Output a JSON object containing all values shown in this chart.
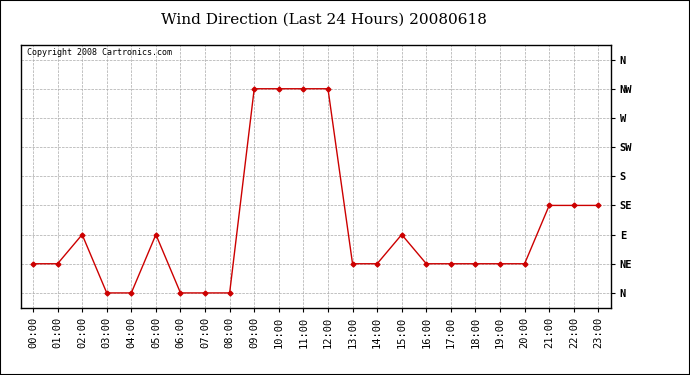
{
  "title": "Wind Direction (Last 24 Hours) 20080618",
  "copyright": "Copyright 2008 Cartronics.com",
  "x_labels": [
    "00:00",
    "01:00",
    "02:00",
    "03:00",
    "04:00",
    "05:00",
    "06:00",
    "07:00",
    "08:00",
    "09:00",
    "10:00",
    "11:00",
    "12:00",
    "13:00",
    "14:00",
    "15:00",
    "16:00",
    "17:00",
    "18:00",
    "19:00",
    "20:00",
    "21:00",
    "22:00",
    "23:00"
  ],
  "y_labels": [
    "N",
    "NE",
    "E",
    "SE",
    "S",
    "SW",
    "W",
    "NW",
    "N"
  ],
  "y_values": [
    0,
    1,
    2,
    3,
    4,
    5,
    6,
    7,
    8
  ],
  "data": [
    1,
    1,
    2,
    0,
    0,
    2,
    0,
    0,
    0,
    7,
    7,
    7,
    7,
    1,
    1,
    2,
    1,
    1,
    1,
    1,
    1,
    3,
    3,
    3
  ],
  "line_color": "#cc0000",
  "marker": "D",
  "marker_size": 2.5,
  "bg_color": "#ffffff",
  "grid_color": "#aaaaaa",
  "title_fontsize": 11,
  "copyright_fontsize": 6,
  "tick_fontsize": 7.5
}
